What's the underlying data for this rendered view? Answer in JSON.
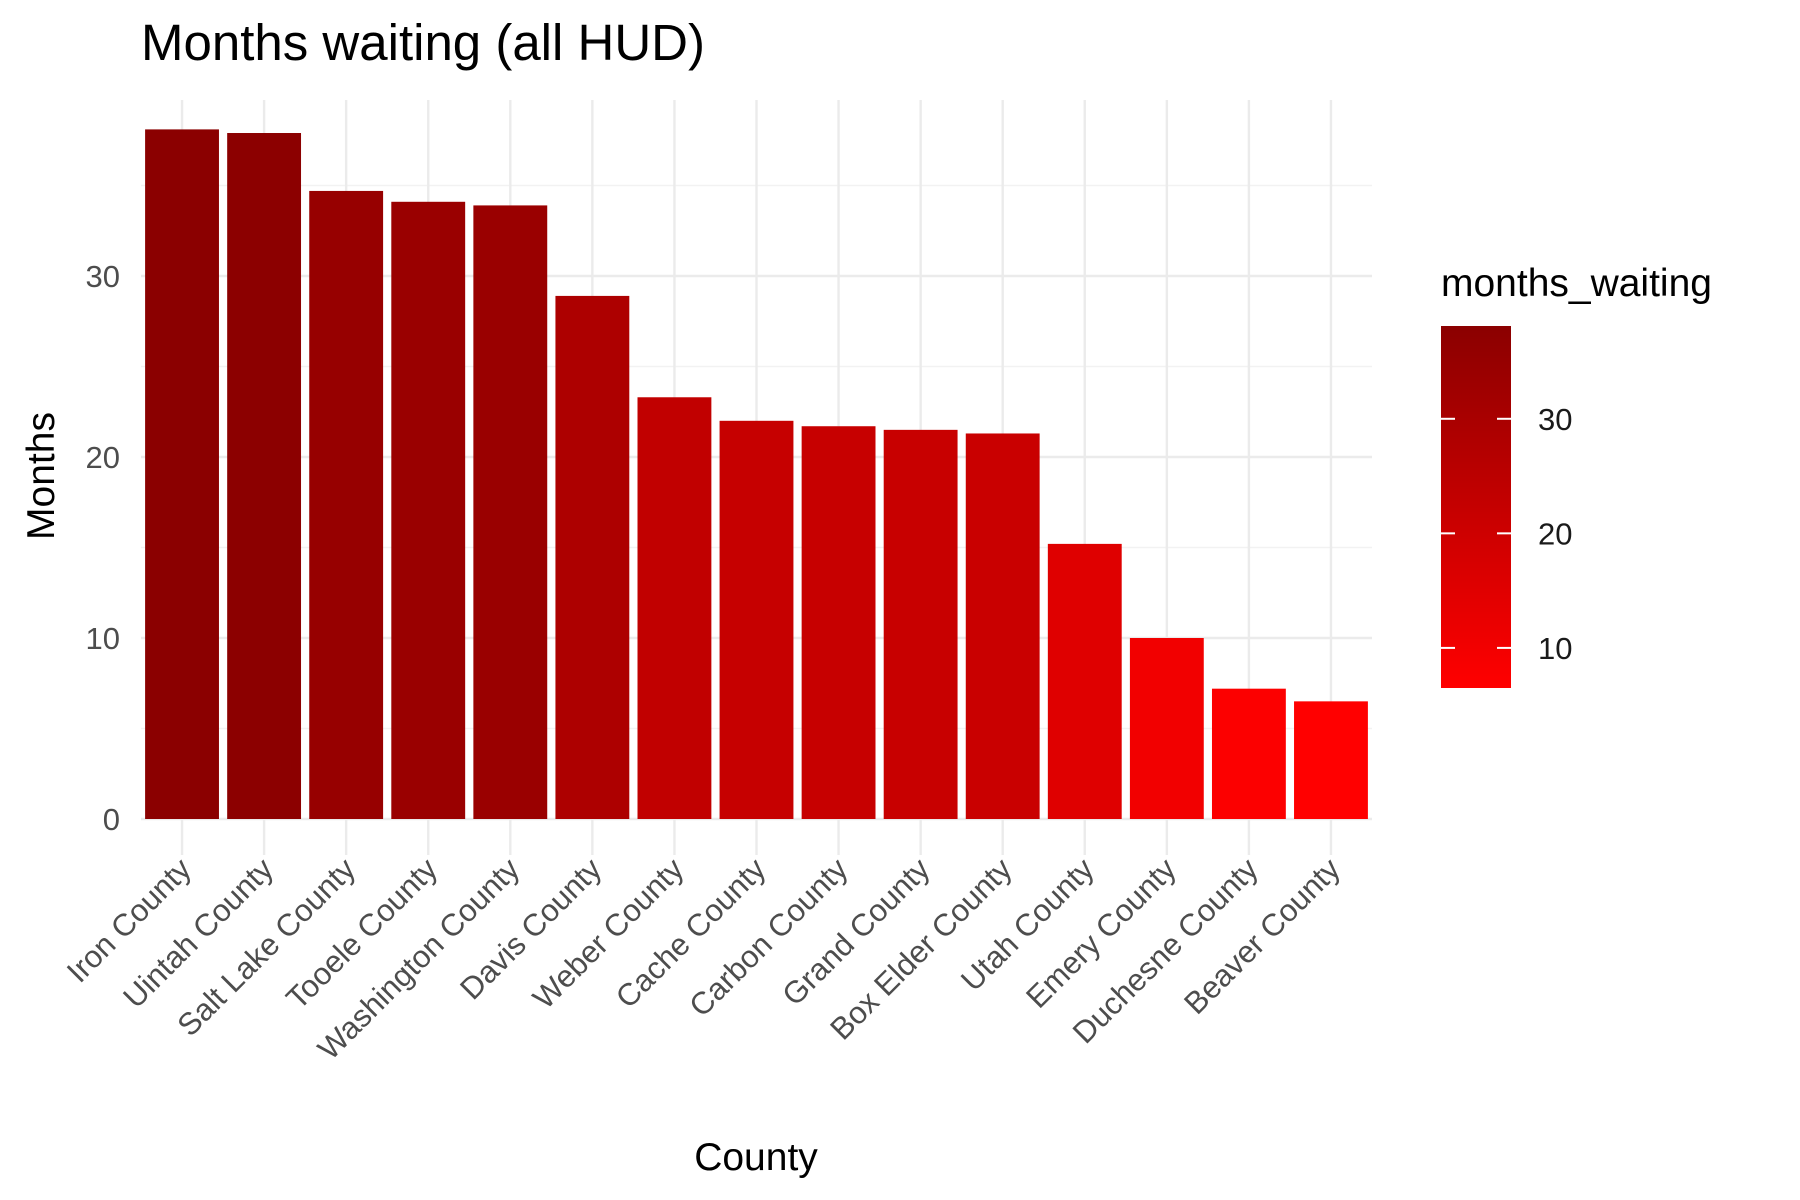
{
  "chart_data": {
    "type": "bar",
    "title": "Months waiting (all HUD)",
    "xlabel": "County",
    "ylabel": "Months",
    "categories": [
      "Iron County",
      "Uintah County",
      "Salt Lake County",
      "Tooele County",
      "Washington County",
      "Davis County",
      "Weber County",
      "Cache County",
      "Carbon County",
      "Grand County",
      "Box Elder County",
      "Utah County",
      "Emery County",
      "Duchesne County",
      "Beaver County"
    ],
    "values": [
      38.1,
      37.9,
      34.7,
      34.1,
      33.9,
      28.9,
      23.3,
      22.0,
      21.7,
      21.5,
      21.3,
      15.2,
      10.0,
      7.2,
      6.5
    ],
    "ylim": [
      0,
      40
    ],
    "yticks": [
      0,
      10,
      20,
      30
    ],
    "grid": true,
    "legend": {
      "title": "months_waiting",
      "placement": "right",
      "breaks": [
        10,
        20,
        30
      ],
      "range": [
        6.5,
        38.1
      ],
      "low_color": "#ff0000",
      "high_color": "#8b0000"
    }
  }
}
